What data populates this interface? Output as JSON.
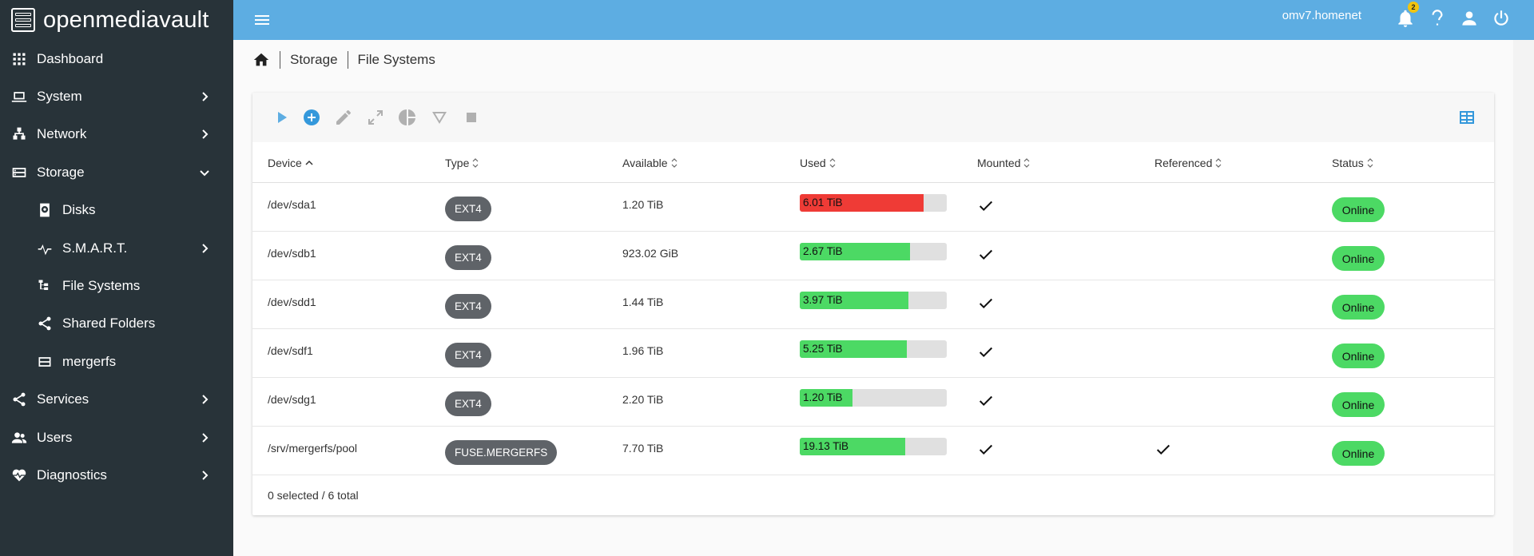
{
  "app": {
    "name": "openmediavault",
    "hostname": "omv7.homenet",
    "notification_count": "2"
  },
  "sidebar": {
    "items": [
      {
        "label": "Dashboard",
        "icon": "dashboard-grid-icon",
        "chevron": "none"
      },
      {
        "label": "System",
        "icon": "laptop-icon",
        "chevron": "right"
      },
      {
        "label": "Network",
        "icon": "network-icon",
        "chevron": "right"
      },
      {
        "label": "Storage",
        "icon": "storage-icon",
        "chevron": "down"
      },
      {
        "label": "Disks",
        "icon": "disk-icon",
        "chevron": "none",
        "sub": true
      },
      {
        "label": "S.M.A.R.T.",
        "icon": "pulse-icon",
        "chevron": "right",
        "sub": true
      },
      {
        "label": "File Systems",
        "icon": "file-tree-icon",
        "chevron": "none",
        "sub": true
      },
      {
        "label": "Shared Folders",
        "icon": "share-icon",
        "chevron": "none",
        "sub": true
      },
      {
        "label": "mergerfs",
        "icon": "mergerfs-icon",
        "chevron": "none",
        "sub": true
      },
      {
        "label": "Services",
        "icon": "services-share-icon",
        "chevron": "right"
      },
      {
        "label": "Users",
        "icon": "users-icon",
        "chevron": "right"
      },
      {
        "label": "Diagnostics",
        "icon": "heart-pulse-icon",
        "chevron": "right"
      }
    ]
  },
  "breadcrumb": {
    "storage": "Storage",
    "file_systems": "File Systems"
  },
  "table": {
    "columns": [
      "Device",
      "Type",
      "Available",
      "Used",
      "Mounted",
      "Referenced",
      "Status"
    ],
    "rows": [
      {
        "device": "/dev/sda1",
        "type": "EXT4",
        "available": "1.20 TiB",
        "used": "6.01 TiB",
        "used_pct": 84,
        "used_color": "#ef3b36",
        "mounted": true,
        "referenced": false,
        "status": "Online"
      },
      {
        "device": "/dev/sdb1",
        "type": "EXT4",
        "available": "923.02 GiB",
        "used": "2.67 TiB",
        "used_pct": 75,
        "used_color": "#4cd964",
        "mounted": true,
        "referenced": false,
        "status": "Online"
      },
      {
        "device": "/dev/sdd1",
        "type": "EXT4",
        "available": "1.44 TiB",
        "used": "3.97 TiB",
        "used_pct": 74,
        "used_color": "#4cd964",
        "mounted": true,
        "referenced": false,
        "status": "Online"
      },
      {
        "device": "/dev/sdf1",
        "type": "EXT4",
        "available": "1.96 TiB",
        "used": "5.25 TiB",
        "used_pct": 73,
        "used_color": "#4cd964",
        "mounted": true,
        "referenced": false,
        "status": "Online"
      },
      {
        "device": "/dev/sdg1",
        "type": "EXT4",
        "available": "2.20 TiB",
        "used": "1.20 TiB",
        "used_pct": 36,
        "used_color": "#4cd964",
        "mounted": true,
        "referenced": false,
        "status": "Online"
      },
      {
        "device": "/srv/mergerfs/pool",
        "type": "FUSE.MERGERFS",
        "available": "7.70 TiB",
        "used": "19.13 TiB",
        "used_pct": 72,
        "used_color": "#4cd964",
        "mounted": true,
        "referenced": true,
        "status": "Online"
      }
    ],
    "footer": "0 selected / 6 total"
  }
}
